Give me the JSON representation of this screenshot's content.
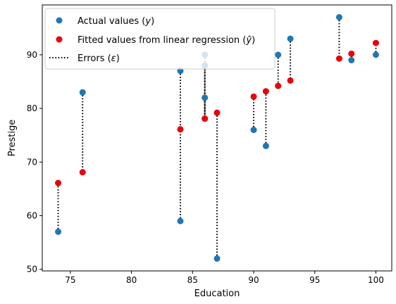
{
  "chart_data": {
    "type": "scatter",
    "xlabel": "Education",
    "ylabel": "Prestige",
    "xlim": [
      72.7,
      101.3
    ],
    "ylim": [
      49.7,
      99.3
    ],
    "xticks": [
      75,
      80,
      85,
      90,
      95,
      100
    ],
    "yticks": [
      50,
      60,
      70,
      80,
      90
    ],
    "grid": false,
    "legend_position": "upper-left",
    "series": [
      {
        "name": "Actual values ($y$)",
        "marker_color": "#1f77b4",
        "points": [
          {
            "x": 74,
            "y": 57
          },
          {
            "x": 76,
            "y": 83
          },
          {
            "x": 84,
            "y": 59
          },
          {
            "x": 84,
            "y": 87
          },
          {
            "x": 86,
            "y": 82
          },
          {
            "x": 86,
            "y": 88
          },
          {
            "x": 86,
            "y": 90
          },
          {
            "x": 87,
            "y": 52
          },
          {
            "x": 90,
            "y": 76
          },
          {
            "x": 91,
            "y": 73
          },
          {
            "x": 92,
            "y": 90
          },
          {
            "x": 93,
            "y": 93
          },
          {
            "x": 97,
            "y": 97
          },
          {
            "x": 98,
            "y": 89
          },
          {
            "x": 100,
            "y": 90
          }
        ]
      },
      {
        "name": "Fitted values from linear regression ($\\hat{y}$)",
        "marker_color": "#e8000b",
        "points": [
          {
            "x": 74,
            "y": 66.1
          },
          {
            "x": 76,
            "y": 68.1
          },
          {
            "x": 84,
            "y": 76.1
          },
          {
            "x": 86,
            "y": 78.1
          },
          {
            "x": 87,
            "y": 79.2
          },
          {
            "x": 90,
            "y": 82.2
          },
          {
            "x": 91,
            "y": 83.2
          },
          {
            "x": 92,
            "y": 84.2
          },
          {
            "x": 93,
            "y": 85.2
          },
          {
            "x": 97,
            "y": 89.3
          },
          {
            "x": 98,
            "y": 90.2
          },
          {
            "x": 100,
            "y": 92.2
          }
        ]
      },
      {
        "name": "Errors ($\\epsilon$)",
        "line_style": "dotted",
        "line_color": "#000000"
      }
    ],
    "errors": [
      {
        "x": 74,
        "y_actual": 57,
        "y_fitted": 66.1
      },
      {
        "x": 76,
        "y_actual": 83,
        "y_fitted": 68.1
      },
      {
        "x": 84,
        "y_actual": 59,
        "y_fitted": 76.1
      },
      {
        "x": 84,
        "y_actual": 87,
        "y_fitted": 76.1
      },
      {
        "x": 86,
        "y_actual": 82,
        "y_fitted": 78.1
      },
      {
        "x": 86,
        "y_actual": 88,
        "y_fitted": 78.1
      },
      {
        "x": 86,
        "y_actual": 90,
        "y_fitted": 78.1
      },
      {
        "x": 87,
        "y_actual": 52,
        "y_fitted": 79.2
      },
      {
        "x": 90,
        "y_actual": 76,
        "y_fitted": 82.2
      },
      {
        "x": 91,
        "y_actual": 73,
        "y_fitted": 83.2
      },
      {
        "x": 92,
        "y_actual": 90,
        "y_fitted": 84.2
      },
      {
        "x": 93,
        "y_actual": 93,
        "y_fitted": 85.2
      },
      {
        "x": 97,
        "y_actual": 97,
        "y_fitted": 89.3
      },
      {
        "x": 98,
        "y_actual": 89,
        "y_fitted": 90.2
      },
      {
        "x": 100,
        "y_actual": 90,
        "y_fitted": 92.2
      }
    ]
  }
}
